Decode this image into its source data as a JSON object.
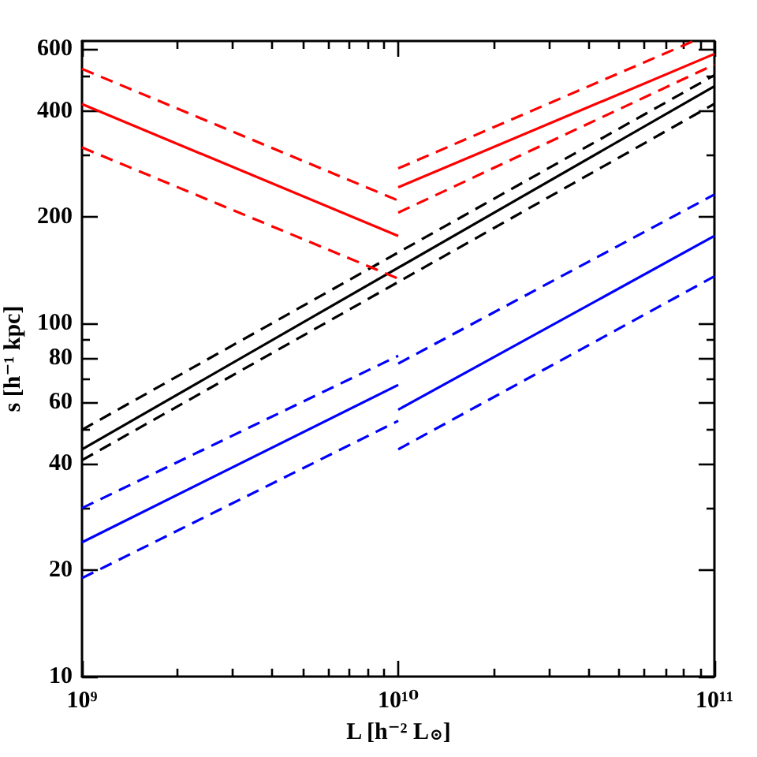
{
  "chart_data": {
    "type": "line",
    "xlabel": "L [h⁻² L$_{⊙}$]",
    "ylabel": "s [h⁻¹ kpc]",
    "log": "xy",
    "xlim": [
      1000000000.0,
      100000000000.0
    ],
    "ylim": [
      10,
      631
    ],
    "xticks": [
      {
        "value": 1000000000.0,
        "label": "10⁹"
      },
      {
        "value": 2000000000.0,
        "label": null
      },
      {
        "value": 3000000000.0,
        "label": null
      },
      {
        "value": 4000000000.0,
        "label": null
      },
      {
        "value": 5000000000.0,
        "label": null
      },
      {
        "value": 6000000000.0,
        "label": null
      },
      {
        "value": 7000000000.0,
        "label": null
      },
      {
        "value": 8000000000.0,
        "label": null
      },
      {
        "value": 9000000000.0,
        "label": null
      },
      {
        "value": 10000000000.0,
        "label": "10¹⁰"
      },
      {
        "value": 20000000000.0,
        "label": null
      },
      {
        "value": 30000000000.0,
        "label": null
      },
      {
        "value": 40000000000.0,
        "label": null
      },
      {
        "value": 50000000000.0,
        "label": null
      },
      {
        "value": 60000000000.0,
        "label": null
      },
      {
        "value": 70000000000.0,
        "label": null
      },
      {
        "value": 80000000000.0,
        "label": null
      },
      {
        "value": 90000000000.0,
        "label": null
      },
      {
        "value": 100000000000.0,
        "label": "10¹¹"
      }
    ],
    "yticks": [
      10,
      20,
      {
        "value": 30,
        "label": null
      },
      40,
      {
        "value": 50,
        "label": null
      },
      60,
      {
        "value": 70,
        "label": null
      },
      80,
      {
        "value": 90,
        "label": null
      },
      100,
      200,
      {
        "value": 300,
        "label": null
      },
      400,
      {
        "value": 500,
        "label": null
      },
      600
    ],
    "marker": "none",
    "series": [
      {
        "color": "#000000",
        "line_style": "solid",
        "x": [
          1000000000.0,
          100000000000.0
        ],
        "values": [
          44,
          470
        ]
      },
      {
        "color": "#000000",
        "line_style": "dashed",
        "x": [
          1000000000.0,
          100000000000.0
        ],
        "values": [
          50,
          505
        ]
      },
      {
        "color": "#000000",
        "line_style": "dashed",
        "x": [
          1000000000.0,
          100000000000.0
        ],
        "values": [
          41,
          419
        ]
      },
      {
        "color": "#ff0000",
        "line_style": "solid",
        "x": [
          1000000000.0,
          10000000000.0
        ],
        "values": [
          418,
          177
        ]
      },
      {
        "color": "#ff0000",
        "line_style": "dashed",
        "x": [
          1000000000.0,
          10000000000.0
        ],
        "values": [
          526,
          223
        ]
      },
      {
        "color": "#ff0000",
        "line_style": "dashed",
        "x": [
          1000000000.0,
          10000000000.0
        ],
        "values": [
          315,
          134
        ]
      },
      {
        "color": "#ff0000",
        "line_style": "solid",
        "x": [
          10000000000.0,
          100000000000.0
        ],
        "values": [
          243,
          580
        ]
      },
      {
        "color": "#ff0000",
        "line_style": "dashed",
        "x": [
          10000000000.0,
          86000000000.0
        ],
        "values": [
          275,
          631
        ]
      },
      {
        "color": "#ff0000",
        "line_style": "dashed",
        "x": [
          10000000000.0,
          100000000000.0
        ],
        "values": [
          206,
          541
        ]
      },
      {
        "color": "#0000ff",
        "line_style": "solid",
        "x": [
          1000000000.0,
          10000000000.0
        ],
        "values": [
          24,
          67
        ]
      },
      {
        "color": "#0000ff",
        "line_style": "dashed",
        "x": [
          1000000000.0,
          10000000000.0
        ],
        "values": [
          30,
          81
        ]
      },
      {
        "color": "#0000ff",
        "line_style": "dashed",
        "x": [
          1000000000.0,
          10000000000.0
        ],
        "values": [
          19,
          53
        ]
      },
      {
        "color": "#0000ff",
        "line_style": "solid",
        "x": [
          10000000000.0,
          100000000000.0
        ],
        "values": [
          57,
          177
        ]
      },
      {
        "color": "#0000ff",
        "line_style": "dashed",
        "x": [
          10000000000.0,
          100000000000.0
        ],
        "values": [
          77,
          232
        ]
      },
      {
        "color": "#0000ff",
        "line_style": "dashed",
        "x": [
          10000000000.0,
          100000000000.0
        ],
        "values": [
          44,
          136
        ]
      }
    ]
  }
}
